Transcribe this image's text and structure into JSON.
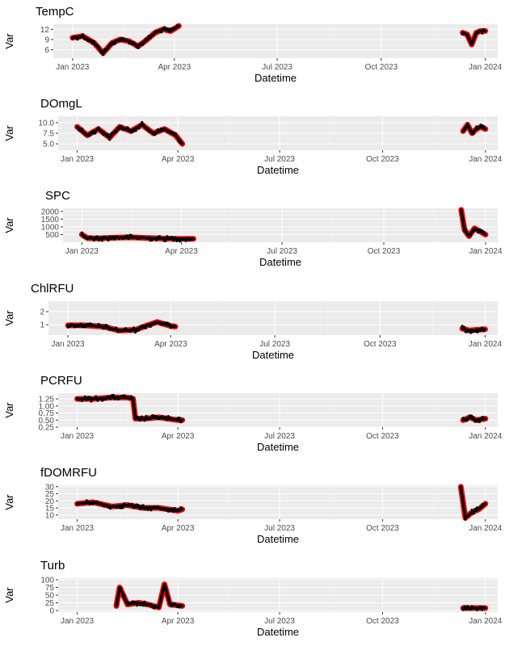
{
  "chart_data": [
    {
      "type": "scatter",
      "title": "TempC",
      "xlabel": "Datetime",
      "ylabel": "Var",
      "x_ticks": [
        "Jan 2023",
        "Apr 2023",
        "Jul 2023",
        "Oct 2023",
        "Jan 2024"
      ],
      "y_ticks": [
        "6",
        "9",
        "12"
      ],
      "ylim": [
        3.5,
        13.5
      ],
      "segments": [
        {
          "x": [
            "2023-01-01",
            "2023-01-10",
            "2023-01-20",
            "2023-01-28",
            "2023-02-05",
            "2023-02-12",
            "2023-02-20",
            "2023-02-28",
            "2023-03-08",
            "2023-03-15",
            "2023-03-22",
            "2023-03-29",
            "2023-04-05"
          ],
          "y": [
            9.5,
            10,
            8,
            5,
            8,
            9,
            8.5,
            7,
            9,
            11,
            12,
            11.5,
            13
          ]
        },
        {
          "x": [
            "2023-12-12",
            "2023-12-16",
            "2023-12-20",
            "2023-12-24",
            "2023-12-28",
            "2024-01-01"
          ],
          "y": [
            11,
            10.5,
            7.5,
            11,
            11.5,
            11.5
          ]
        }
      ]
    },
    {
      "type": "scatter",
      "title": "DOmgL",
      "xlabel": "Datetime",
      "ylabel": "Var",
      "x_ticks": [
        "Jan 2023",
        "Apr 2023",
        "Jul 2023",
        "Oct 2023",
        "Jan 2024"
      ],
      "y_ticks": [
        "5.0",
        "7.5",
        "10.0"
      ],
      "ylim": [
        3.5,
        11.5
      ],
      "segments": [
        {
          "x": [
            "2023-01-01",
            "2023-01-10",
            "2023-01-20",
            "2023-01-30",
            "2023-02-08",
            "2023-02-18",
            "2023-02-28",
            "2023-03-10",
            "2023-03-20",
            "2023-03-30",
            "2023-04-05"
          ],
          "y": [
            9,
            7,
            8.5,
            6.5,
            9,
            8,
            9.5,
            7.5,
            8.5,
            7,
            5
          ]
        },
        {
          "x": [
            "2023-12-12",
            "2023-12-16",
            "2023-12-20",
            "2023-12-24",
            "2023-12-28",
            "2024-01-01"
          ],
          "y": [
            8,
            9.5,
            7.5,
            8.5,
            9,
            8.5
          ]
        }
      ]
    },
    {
      "type": "scatter",
      "title": "SPC",
      "xlabel": "Datetime",
      "ylabel": "Var",
      "x_ticks": [
        "Jan 2023",
        "Apr 2023",
        "Jul 2023",
        "Oct 2023",
        "Jan 2024"
      ],
      "y_ticks": [
        "500",
        "1000",
        "1500",
        "2000"
      ],
      "ylim": [
        0,
        2200
      ],
      "segments": [
        {
          "x": [
            "2023-01-01",
            "2023-01-06",
            "2023-01-15",
            "2023-02-01",
            "2023-02-15",
            "2023-03-01",
            "2023-03-15",
            "2023-04-01",
            "2023-04-12"
          ],
          "y": [
            500,
            280,
            250,
            300,
            320,
            270,
            240,
            220,
            220
          ]
        },
        {
          "x": [
            "2023-12-10",
            "2023-12-13",
            "2023-12-17",
            "2023-12-22",
            "2023-12-27",
            "2024-01-01"
          ],
          "y": [
            2100,
            800,
            400,
            900,
            700,
            500
          ]
        }
      ]
    },
    {
      "type": "scatter",
      "title": "ChlRFU",
      "xlabel": "Datetime",
      "ylabel": "Var",
      "x_ticks": [
        "Jan 2023",
        "Apr 2023",
        "Jul 2023",
        "Oct 2023",
        "Jan 2024"
      ],
      "y_ticks": [
        "1",
        "2"
      ],
      "ylim": [
        0.2,
        2.8
      ],
      "segments": [
        {
          "x": [
            "2023-01-01",
            "2023-01-15",
            "2023-02-01",
            "2023-02-15",
            "2023-03-01",
            "2023-03-10",
            "2023-03-20",
            "2023-04-01",
            "2023-04-05"
          ],
          "y": [
            0.95,
            0.95,
            0.85,
            0.55,
            0.6,
            0.9,
            1.2,
            0.9,
            0.85
          ]
        },
        {
          "x": [
            "2023-12-12",
            "2023-12-18",
            "2023-12-24",
            "2024-01-01"
          ],
          "y": [
            0.7,
            0.55,
            0.6,
            0.65
          ]
        }
      ]
    },
    {
      "type": "scatter",
      "title": "PCRFU",
      "xlabel": "Datetime",
      "ylabel": "Var",
      "x_ticks": [
        "Jan 2023",
        "Apr 2023",
        "Jul 2023",
        "Oct 2023",
        "Jan 2024"
      ],
      "y_ticks": [
        "0.25",
        "0.50",
        "0.75",
        "1.00",
        "1.25"
      ],
      "ylim": [
        0.25,
        1.45
      ],
      "segments": [
        {
          "x": [
            "2023-01-01",
            "2023-01-15",
            "2023-02-01",
            "2023-02-15",
            "2023-02-20",
            "2023-02-22",
            "2023-03-01",
            "2023-03-15",
            "2023-04-01",
            "2023-04-05"
          ],
          "y": [
            1.25,
            1.25,
            1.3,
            1.3,
            1.25,
            0.55,
            0.55,
            0.6,
            0.5,
            0.5
          ]
        },
        {
          "x": [
            "2023-12-12",
            "2023-12-18",
            "2023-12-24",
            "2024-01-01"
          ],
          "y": [
            0.5,
            0.6,
            0.5,
            0.55
          ]
        }
      ]
    },
    {
      "type": "scatter",
      "title": "fDOMRFU",
      "xlabel": "Datetime",
      "ylabel": "Var",
      "x_ticks": [
        "Jan 2023",
        "Apr 2023",
        "Jul 2023",
        "Oct 2023",
        "Jan 2024"
      ],
      "y_ticks": [
        "10",
        "15",
        "20",
        "25",
        "30"
      ],
      "ylim": [
        7,
        31
      ],
      "segments": [
        {
          "x": [
            "2023-01-01",
            "2023-01-15",
            "2023-02-01",
            "2023-02-15",
            "2023-03-01",
            "2023-03-15",
            "2023-04-01",
            "2023-04-05"
          ],
          "y": [
            18,
            19,
            16,
            17,
            15,
            15,
            13,
            14
          ]
        },
        {
          "x": [
            "2023-12-10",
            "2023-12-14",
            "2023-12-20",
            "2023-12-26",
            "2024-01-01"
          ],
          "y": [
            30,
            8,
            12,
            14,
            18
          ]
        }
      ]
    },
    {
      "type": "scatter",
      "title": "Turb",
      "xlabel": "Datetime",
      "ylabel": "Var",
      "x_ticks": [
        "Jan 2023",
        "Apr 2023",
        "Jul 2023",
        "Oct 2023",
        "Jan 2024"
      ],
      "y_ticks": [
        "0",
        "25",
        "50",
        "75",
        "100"
      ],
      "ylim": [
        -5,
        105
      ],
      "segments": [
        {
          "x": [
            "2023-02-05",
            "2023-02-08",
            "2023-02-15",
            "2023-02-25",
            "2023-03-05",
            "2023-03-15",
            "2023-03-20",
            "2023-03-25",
            "2023-04-05"
          ],
          "y": [
            15,
            75,
            20,
            25,
            20,
            10,
            85,
            20,
            15
          ]
        },
        {
          "x": [
            "2023-12-12",
            "2023-12-20",
            "2024-01-01"
          ],
          "y": [
            8,
            8,
            8
          ]
        }
      ]
    }
  ]
}
